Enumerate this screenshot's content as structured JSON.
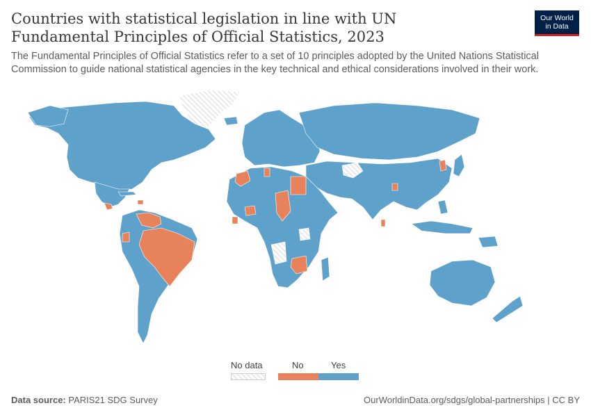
{
  "header": {
    "title": "Countries with statistical legislation in line with UN Fundamental Principles of Official Statistics, 2023",
    "subtitle": "The Fundamental Principles of Official Statistics refer to a set of 10 principles adopted by the United Nations Statistical Commission to guide national statistical agencies in the key technical and ethical considerations involved in their work."
  },
  "logo": {
    "line1": "Our World",
    "line2": "in Data"
  },
  "legend": {
    "items": [
      {
        "label": "No data",
        "color": "#ffffff"
      },
      {
        "label": "No",
        "color": "#e8825a"
      },
      {
        "label": "Yes",
        "color": "#5ea2cb"
      }
    ]
  },
  "colors": {
    "yes": "#5ea2cb",
    "no": "#e8825a",
    "no_data": "#e5e5e5",
    "no_data_hatch": "#cccccc"
  },
  "footer": {
    "source_label": "Data source:",
    "source_value": "PARIS21 SDG Survey",
    "url": "OurWorldinData.org/sdgs/global-partnerships | CC BY"
  }
}
